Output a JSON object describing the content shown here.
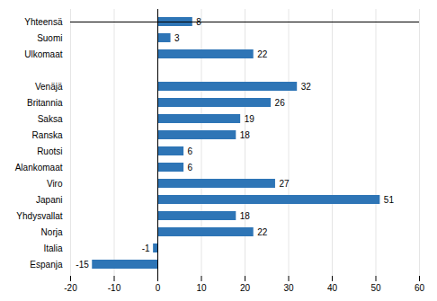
{
  "chart_data": {
    "type": "bar",
    "orientation": "horizontal",
    "categories": [
      "Yhteensä",
      "Suomi",
      "Ulkomaat",
      null,
      "Venäjä",
      "Britannia",
      "Saksa",
      "Ranska",
      "Ruotsi",
      "Alankomaat",
      "Viro",
      "Japani",
      "Yhdysvallat",
      "Norja",
      "Italia",
      "Espanja"
    ],
    "values": [
      8,
      3,
      22,
      null,
      32,
      26,
      19,
      18,
      6,
      6,
      27,
      51,
      18,
      22,
      -1,
      -15
    ],
    "color": "#2E75B6",
    "xlim": [
      -20,
      60
    ],
    "xticks": [
      -20,
      -10,
      0,
      10,
      20,
      30,
      40,
      50,
      60
    ],
    "grid": true,
    "data_labels": true
  }
}
